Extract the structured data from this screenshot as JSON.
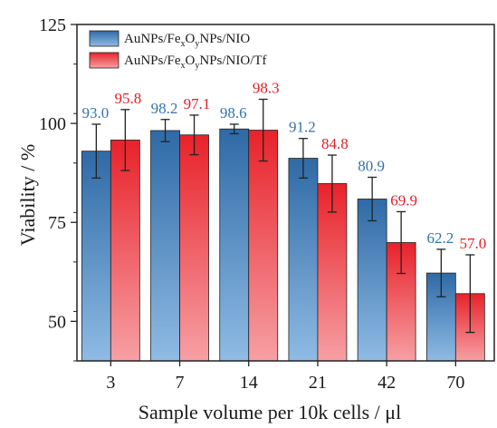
{
  "chart_data": {
    "type": "bar",
    "categories": [
      "3",
      "7",
      "14",
      "21",
      "42",
      "70"
    ],
    "series": [
      {
        "name": "AuNPs/FexOyNPs/NIO",
        "name_parts": [
          "AuNPs/Fe",
          "x",
          "O",
          "y",
          "NPs/NIO"
        ],
        "values": [
          93.0,
          98.2,
          98.6,
          91.2,
          80.9,
          62.2
        ],
        "errors": [
          6.8,
          2.8,
          1.2,
          5.0,
          5.5,
          6.0
        ],
        "labels": [
          "93.0",
          "98.2",
          "98.6",
          "91.2",
          "80.9",
          "62.2"
        ],
        "color": "#2f6aa6",
        "color_light": "#8fbbe4",
        "label_color": "#3472b0"
      },
      {
        "name": "AuNPs/FexOyNPs/NIO/Tf",
        "name_parts": [
          "AuNPs/Fe",
          "x",
          "O",
          "y",
          "NPs/NIO/Tf"
        ],
        "values": [
          95.8,
          97.1,
          98.3,
          84.8,
          69.9,
          57.0
        ],
        "errors": [
          7.7,
          5.0,
          7.8,
          7.2,
          7.8,
          9.8
        ],
        "labels": [
          "95.8",
          "97.1",
          "98.3",
          "84.8",
          "69.9",
          "57.0"
        ],
        "color": "#e8222a",
        "color_light": "#f6a0a4",
        "label_color": "#e31d23"
      }
    ],
    "xlabel": "Sample volume per 10k cells / μl",
    "ylabel": "Viability / %",
    "ylim": [
      40,
      125
    ],
    "yticks": [
      50,
      75,
      100,
      125
    ],
    "grid": false,
    "legend": "top-left"
  }
}
